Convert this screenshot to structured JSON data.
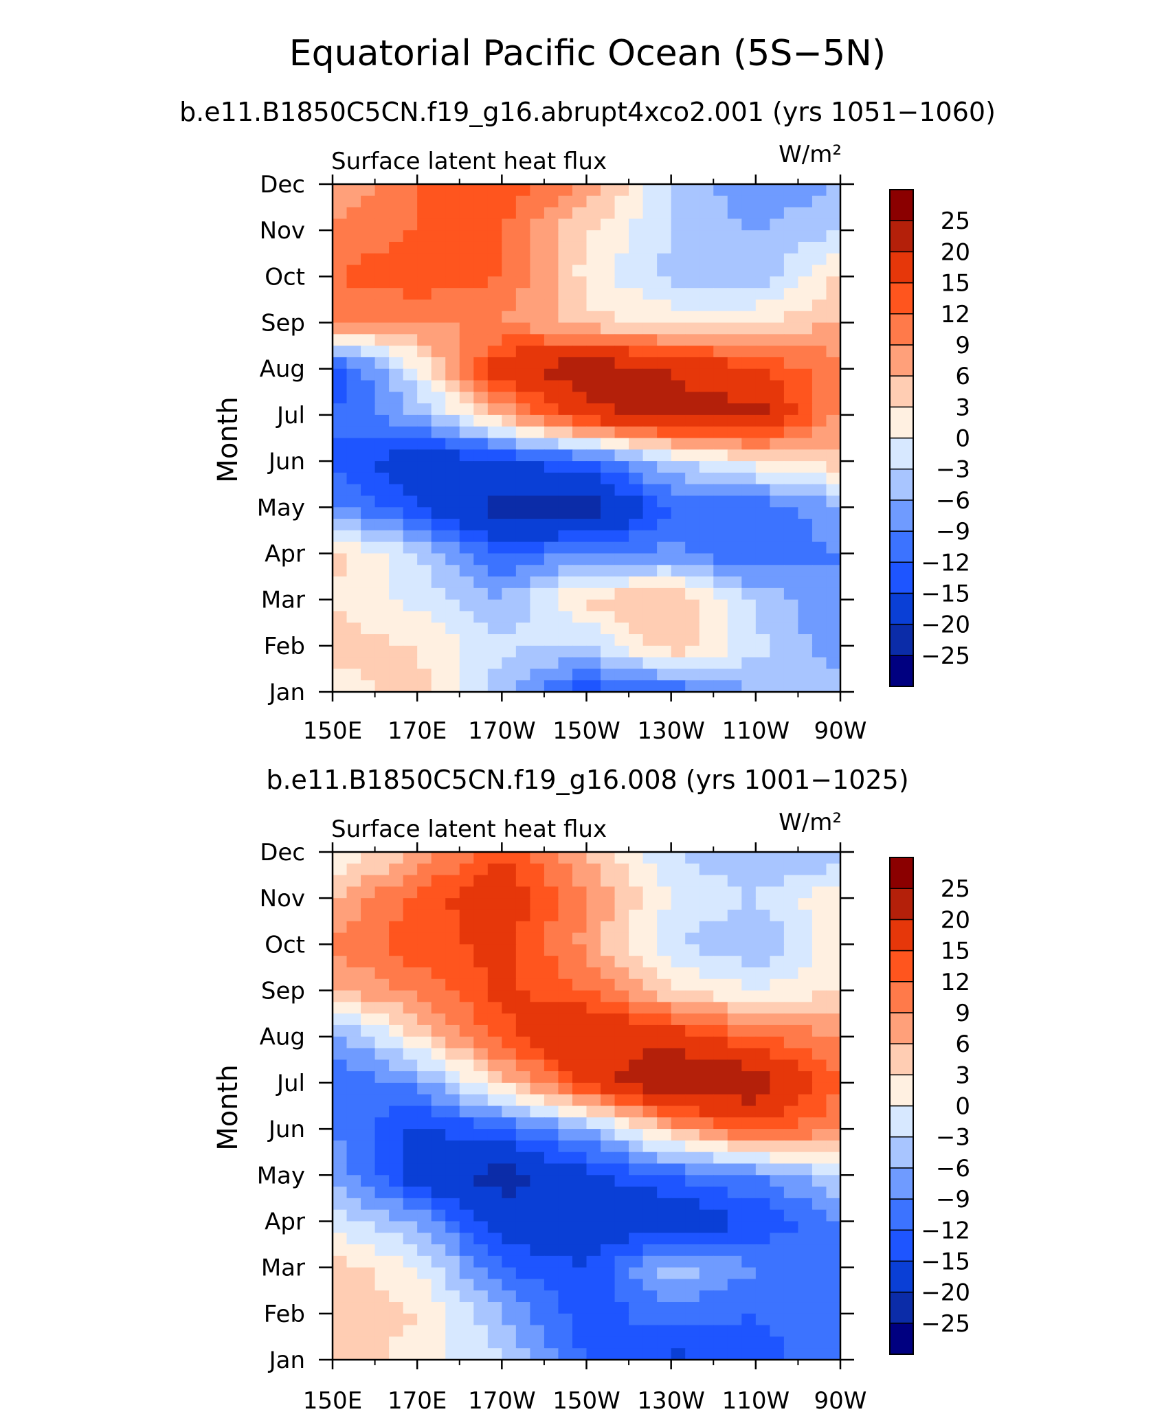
{
  "figure": {
    "title": "Equatorial Pacific Ocean (5S−5N)"
  },
  "chart_data": [
    {
      "type": "heatmap",
      "title": "b.e11.B1850C5CN.f19_g16.abrupt4xco2.001 (yrs 1051−1060)",
      "left_label": "Surface latent heat flux",
      "units_label": "W/m²",
      "ylabel": "Month",
      "xlabel": "",
      "x_tick_labels": [
        "150E",
        "170E",
        "170W",
        "150W",
        "130W",
        "110W",
        "90W"
      ],
      "x_tick_values": [
        150,
        170,
        190,
        210,
        230,
        250,
        270
      ],
      "xlim": [
        150,
        270
      ],
      "y_tick_labels": [
        "Jan",
        "Feb",
        "Mar",
        "Apr",
        "May",
        "Jun",
        "Jul",
        "Aug",
        "Sep",
        "Oct",
        "Nov",
        "Dec"
      ],
      "ylim": [
        1,
        12
      ],
      "colorbar_levels": [
        -25,
        -20,
        -15,
        -12,
        -9,
        -6,
        -3,
        0,
        3,
        6,
        9,
        12,
        15,
        20,
        25
      ],
      "colorbar_labels": [
        "25",
        "20",
        "15",
        "12",
        "9",
        "6",
        "3",
        "0",
        "−3",
        "−6",
        "−9",
        "−12",
        "−15",
        "−20",
        "−25"
      ],
      "grid_x": [
        150,
        170,
        190,
        210,
        230,
        250,
        270
      ],
      "values": [
        [
          2,
          4,
          -5,
          -14,
          -12,
          -6,
          -4
        ],
        [
          4,
          3,
          -2,
          -4,
          6,
          -2,
          -8
        ],
        [
          3,
          -1,
          -6,
          4,
          6,
          -4,
          -9
        ],
        [
          4,
          -3,
          -12,
          -9,
          -8,
          -12,
          -9
        ],
        [
          -9,
          -15,
          -22,
          -24,
          -12,
          -12,
          -6
        ],
        [
          -12,
          -18,
          -16,
          -12,
          -3,
          2,
          5
        ],
        [
          -12,
          -6,
          6,
          18,
          22,
          22,
          8
        ],
        [
          -15,
          0,
          18,
          24,
          20,
          15,
          10
        ],
        [
          10,
          9,
          9,
          4,
          2,
          3,
          6
        ],
        [
          12,
          14,
          12,
          2,
          -4,
          -6,
          4
        ],
        [
          10,
          12,
          12,
          3,
          -3,
          -6,
          -3
        ],
        [
          6,
          12,
          14,
          9,
          -3,
          -9,
          -6
        ]
      ]
    },
    {
      "type": "heatmap",
      "title": "b.e11.B1850C5CN.f19_g16.008 (yrs 1001−1025)",
      "left_label": "Surface latent heat flux",
      "units_label": "W/m²",
      "ylabel": "Month",
      "xlabel": "",
      "x_tick_labels": [
        "150E",
        "170E",
        "170W",
        "150W",
        "130W",
        "110W",
        "90W"
      ],
      "x_tick_values": [
        150,
        170,
        190,
        210,
        230,
        250,
        270
      ],
      "xlim": [
        150,
        270
      ],
      "y_tick_labels": [
        "Jan",
        "Feb",
        "Mar",
        "Apr",
        "May",
        "Jun",
        "Jul",
        "Aug",
        "Sep",
        "Oct",
        "Nov",
        "Dec"
      ],
      "ylim": [
        1,
        12
      ],
      "colorbar_levels": [
        -25,
        -20,
        -15,
        -12,
        -9,
        -6,
        -3,
        0,
        3,
        6,
        9,
        12,
        15,
        20,
        25
      ],
      "colorbar_labels": [
        "25",
        "20",
        "15",
        "12",
        "9",
        "6",
        "3",
        "0",
        "−3",
        "−6",
        "−9",
        "−12",
        "−15",
        "−20",
        "−25"
      ],
      "grid_x": [
        150,
        170,
        190,
        210,
        230,
        250,
        270
      ],
      "values": [
        [
          4,
          2,
          -3,
          -12,
          -16,
          -14,
          -9
        ],
        [
          6,
          3,
          -6,
          -14,
          -10,
          -12,
          -9
        ],
        [
          5,
          0,
          -12,
          -15,
          -4,
          -9,
          -9
        ],
        [
          -2,
          -6,
          -18,
          -20,
          -18,
          -15,
          -9
        ],
        [
          -6,
          -18,
          -22,
          -16,
          -12,
          -9,
          -3
        ],
        [
          -9,
          -16,
          -12,
          -6,
          6,
          14,
          9
        ],
        [
          -12,
          -8,
          4,
          16,
          26,
          24,
          12
        ],
        [
          -8,
          3,
          14,
          20,
          18,
          12,
          9
        ],
        [
          6,
          10,
          16,
          12,
          3,
          0,
          3
        ],
        [
          9,
          14,
          16,
          8,
          -3,
          -6,
          2
        ],
        [
          6,
          13,
          18,
          9,
          0,
          -3,
          3
        ],
        [
          0,
          6,
          15,
          6,
          -3,
          -6,
          -6
        ]
      ]
    }
  ],
  "colorbar_colors": [
    "#000080",
    "#0b2ca8",
    "#0a3fd6",
    "#1e55ff",
    "#3c73ff",
    "#6f9bff",
    "#a8c5ff",
    "#d7e8ff",
    "#fff0e1",
    "#ffcdb3",
    "#ffa07a",
    "#ff7a4a",
    "#ff551e",
    "#e6370a",
    "#b4200a",
    "#8b0000"
  ]
}
